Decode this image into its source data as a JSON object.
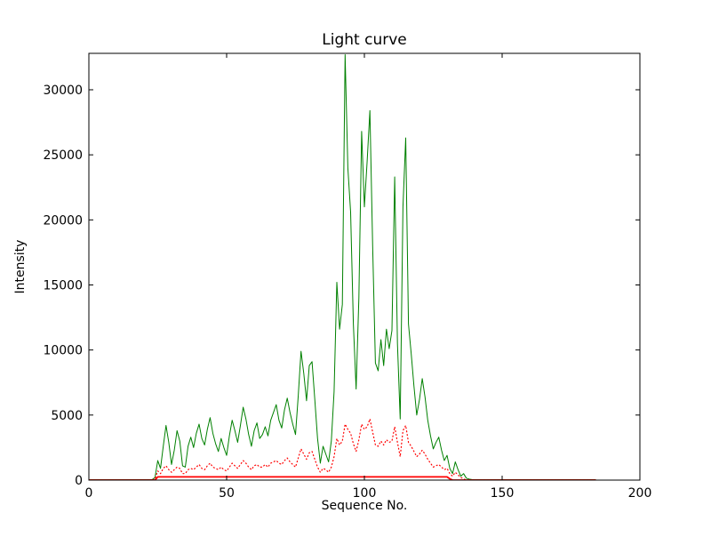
{
  "chart_data": {
    "type": "line",
    "title": "Light curve",
    "xlabel": "Sequence No.",
    "ylabel": "Intensity",
    "xlim": [
      0,
      200
    ],
    "ylim": [
      0,
      32800
    ],
    "xticks": [
      0,
      50,
      100,
      150,
      200
    ],
    "yticks": [
      0,
      5000,
      10000,
      15000,
      20000,
      25000,
      30000
    ],
    "grid": false,
    "legend": "none",
    "x": [
      0,
      10,
      20,
      23,
      24,
      25,
      26,
      27,
      28,
      29,
      30,
      31,
      32,
      33,
      34,
      35,
      36,
      37,
      38,
      39,
      40,
      41,
      42,
      43,
      44,
      45,
      46,
      47,
      48,
      49,
      50,
      51,
      52,
      53,
      54,
      55,
      56,
      57,
      58,
      59,
      60,
      61,
      62,
      63,
      64,
      65,
      66,
      67,
      68,
      69,
      70,
      71,
      72,
      73,
      74,
      75,
      76,
      77,
      78,
      79,
      80,
      81,
      82,
      83,
      84,
      85,
      86,
      87,
      88,
      89,
      90,
      91,
      92,
      93,
      94,
      95,
      96,
      97,
      98,
      99,
      100,
      101,
      102,
      103,
      104,
      105,
      106,
      107,
      108,
      109,
      110,
      111,
      112,
      113,
      114,
      115,
      116,
      117,
      118,
      119,
      120,
      121,
      122,
      123,
      124,
      125,
      126,
      127,
      128,
      129,
      130,
      131,
      132,
      133,
      134,
      135,
      136,
      137,
      138,
      139,
      140,
      145,
      150,
      160,
      170,
      184
    ],
    "series": [
      {
        "name": "green-solid-line",
        "color": "#008000",
        "style": "solid",
        "line_width": 1.0,
        "values": [
          30,
          30,
          30,
          40,
          200,
          1500,
          900,
          2600,
          4200,
          2900,
          1200,
          2300,
          3800,
          3000,
          1100,
          1000,
          2600,
          3300,
          2500,
          3600,
          4300,
          3200,
          2700,
          3900,
          4800,
          3600,
          2800,
          2200,
          3200,
          2500,
          1900,
          3400,
          4600,
          3800,
          2900,
          4200,
          5600,
          4700,
          3500,
          2600,
          3800,
          4400,
          3200,
          3500,
          4100,
          3400,
          4600,
          5200,
          5800,
          4600,
          4000,
          5400,
          6300,
          5200,
          4300,
          3500,
          6500,
          9900,
          8200,
          6100,
          8800,
          9100,
          6200,
          3200,
          1300,
          2600,
          2000,
          1400,
          3000,
          6800,
          15200,
          11600,
          13500,
          32700,
          24000,
          20600,
          12000,
          7000,
          14000,
          26800,
          21000,
          24500,
          28400,
          18000,
          9000,
          8400,
          10800,
          8800,
          11600,
          10100,
          11500,
          23300,
          10500,
          4700,
          21000,
          26300,
          12000,
          9700,
          7200,
          5000,
          6200,
          7800,
          6400,
          4600,
          3400,
          2400,
          2900,
          3300,
          2300,
          1500,
          1900,
          900,
          500,
          1400,
          800,
          300,
          500,
          150,
          80,
          40,
          30,
          30,
          30,
          30,
          30,
          30
        ]
      },
      {
        "name": "red-dotted-line",
        "color": "#ff0000",
        "style": "dotted",
        "line_width": 1.2,
        "values": [
          0,
          0,
          0,
          0,
          100,
          700,
          500,
          900,
          1100,
          800,
          600,
          800,
          1000,
          900,
          500,
          500,
          800,
          900,
          800,
          1000,
          1200,
          900,
          800,
          1100,
          1300,
          1000,
          900,
          800,
          1000,
          800,
          700,
          1000,
          1300,
          1100,
          900,
          1200,
          1500,
          1300,
          1000,
          800,
          1100,
          1200,
          1000,
          1000,
          1200,
          1000,
          1300,
          1400,
          1500,
          1300,
          1200,
          1500,
          1700,
          1400,
          1200,
          1000,
          1700,
          2400,
          2000,
          1600,
          2100,
          2200,
          1600,
          1000,
          600,
          900,
          800,
          600,
          1000,
          1800,
          3200,
          2700,
          3000,
          4300,
          3900,
          3600,
          2800,
          2200,
          3100,
          4300,
          3900,
          4100,
          4700,
          3700,
          2700,
          2600,
          3000,
          2700,
          3100,
          2900,
          3000,
          4100,
          2900,
          1800,
          3800,
          4200,
          2900,
          2600,
          2200,
          1800,
          2000,
          2300,
          2000,
          1600,
          1300,
          1000,
          1100,
          1200,
          1000,
          800,
          900,
          500,
          300,
          600,
          400,
          200,
          100,
          0,
          0,
          0,
          0,
          0,
          0,
          0,
          0,
          0
        ]
      },
      {
        "name": "red-solid-line",
        "color": "#ff0000",
        "style": "solid",
        "line_width": 1.8,
        "values": [
          0,
          0,
          0,
          0,
          0,
          250,
          250,
          250,
          250,
          250,
          250,
          250,
          250,
          250,
          250,
          250,
          250,
          250,
          250,
          250,
          250,
          250,
          250,
          250,
          250,
          250,
          250,
          250,
          250,
          250,
          250,
          250,
          250,
          250,
          250,
          250,
          250,
          250,
          250,
          250,
          250,
          250,
          250,
          250,
          250,
          250,
          250,
          250,
          250,
          250,
          250,
          250,
          250,
          250,
          250,
          250,
          250,
          250,
          250,
          250,
          250,
          250,
          250,
          250,
          250,
          250,
          250,
          250,
          250,
          250,
          250,
          250,
          250,
          250,
          250,
          250,
          250,
          250,
          250,
          250,
          250,
          250,
          250,
          250,
          250,
          250,
          250,
          250,
          250,
          250,
          250,
          250,
          250,
          250,
          250,
          250,
          250,
          250,
          250,
          250,
          250,
          250,
          250,
          250,
          250,
          250,
          250,
          250,
          250,
          250,
          250,
          100,
          0,
          0,
          0,
          0,
          0,
          0,
          0,
          0,
          0,
          0,
          0,
          0,
          0,
          0
        ]
      }
    ]
  }
}
